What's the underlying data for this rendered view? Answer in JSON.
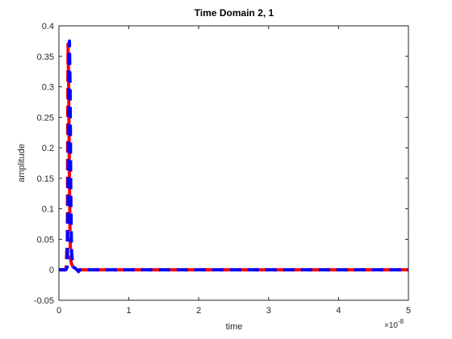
{
  "chart_data": {
    "type": "line",
    "title": "Time Domain 2, 1",
    "x_label": "time",
    "y_label": "amplitude",
    "x_multiplier": "×10",
    "x_exponent": "-8",
    "x": [
      0,
      1e-09,
      1.2e-09,
      1.3e-09,
      1.4e-09,
      1.5e-09,
      1.6e-09,
      1.7e-09,
      1.8e-09,
      2e-09,
      2.5e-09,
      2.8e-09,
      3e-09,
      5e-09,
      1e-08,
      2e-08,
      3e-08,
      4e-08,
      5e-08
    ],
    "series": [
      {
        "name": "red",
        "color": "#ff0000",
        "values": [
          0,
          0,
          0.05,
          0.37,
          0.3,
          0.15,
          0.05,
          0.015,
          0.01,
          0.005,
          0.001,
          0,
          0,
          0,
          0,
          0,
          0,
          0,
          0
        ]
      },
      {
        "name": "blue",
        "color": "#0000ff",
        "values": [
          0,
          0,
          0.005,
          0.1,
          0.3,
          0.375,
          0.3,
          0.12,
          0.03,
          0.005,
          0.001,
          -0.003,
          0,
          0,
          0,
          0,
          0,
          0,
          0
        ]
      }
    ],
    "xlim": [
      0,
      5e-08
    ],
    "xticks": [
      0,
      {
        "value": 1e-08,
        "label": "1"
      },
      {
        "value": 2e-08,
        "label": "2"
      },
      {
        "value": 3e-08,
        "label": "3"
      },
      {
        "value": 4e-08,
        "label": "4"
      },
      {
        "value": 5e-08,
        "label": "5"
      }
    ],
    "ylim": [
      -0.05,
      0.4
    ],
    "yticks": [
      -0.05,
      0,
      0.05,
      0.1,
      0.15,
      0.2,
      0.25,
      0.3,
      0.35,
      0.4
    ],
    "dashed": true,
    "line_width": 4
  }
}
